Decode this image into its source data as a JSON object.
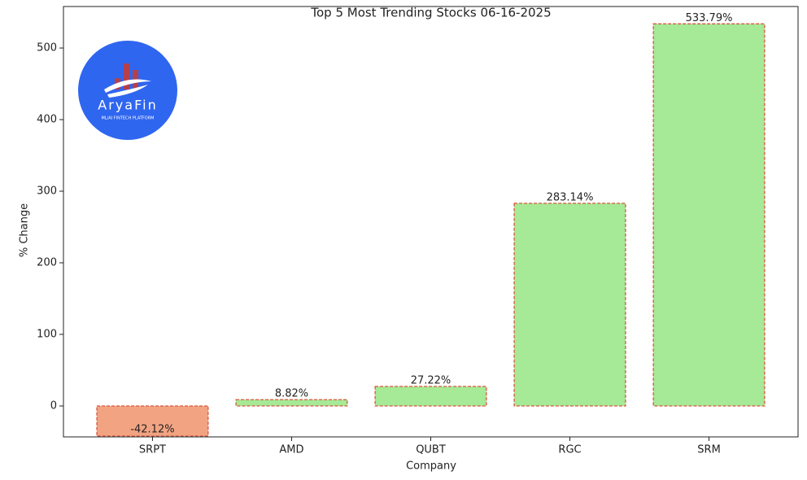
{
  "chart_data": {
    "type": "bar",
    "title": "Top 5 Most Trending Stocks 06-16-2025",
    "x_label": "Company",
    "y_label": "% Change",
    "categories": [
      "SRPT",
      "AMD",
      "QUBT",
      "RGC",
      "SRM"
    ],
    "values": [
      -42.12,
      8.82,
      27.22,
      283.14,
      533.79
    ],
    "value_labels": [
      "-42.12%",
      "8.82%",
      "27.22%",
      "283.14%",
      "533.79%"
    ],
    "colors": [
      "#f2a482",
      "#a6e996",
      "#a6e996",
      "#a6e996",
      "#a6e996"
    ],
    "edge_color": "#d9573f",
    "ylim": [
      -43.2,
      558
    ],
    "yticks": [
      0,
      100,
      200,
      300,
      400,
      500
    ],
    "grid": false,
    "logo_text": "AryaFin",
    "logo_subtext": "ML/AI FINTECH PLATFORM"
  }
}
